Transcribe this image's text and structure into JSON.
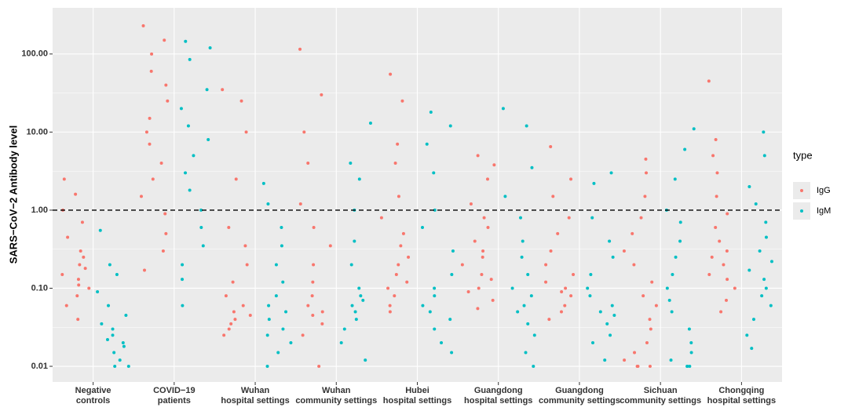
{
  "chart_data": {
    "type": "strip",
    "y_label": "SARS−CoV−2 Antibody level",
    "log_y": true,
    "grid": true,
    "hline": 1,
    "legend_title": "type",
    "legend_position": "right",
    "ylim": [
      0.0063,
      390
    ],
    "yticks": [
      {
        "value": 0.01,
        "label": "0.01"
      },
      {
        "value": 0.1,
        "label": "0.10"
      },
      {
        "value": 1,
        "label": "1.00"
      },
      {
        "value": 10,
        "label": "10.00"
      },
      {
        "value": 100,
        "label": "100.00"
      }
    ],
    "categories": [
      "Negative\ncontrols",
      "COVID−19\npatients",
      "Wuhan\nhospital settings",
      "Wuhan\ncommunity settings",
      "Hubei\nhospital settings",
      "Guangdong\nhospital settings",
      "Guangdong\ncommunity settings",
      "Sichuan\ncommunity settings",
      "Chongqing\nhospital settings"
    ],
    "series": [
      {
        "name": "IgG",
        "color": "#F8766D",
        "values": [
          [
            0.04,
            0.06,
            0.08,
            0.1,
            0.11,
            0.13,
            0.15,
            0.18,
            0.2,
            0.25,
            0.3,
            0.45,
            0.7,
            1.0,
            1.6,
            2.5
          ],
          [
            0.17,
            0.3,
            0.5,
            0.9,
            1.5,
            2.5,
            4,
            7,
            10,
            15,
            25,
            40,
            60,
            100,
            150,
            230
          ],
          [
            0.025,
            0.03,
            0.035,
            0.04,
            0.045,
            0.05,
            0.06,
            0.08,
            0.12,
            0.2,
            0.35,
            0.6,
            2.5,
            10,
            25,
            35
          ],
          [
            0.01,
            0.025,
            0.035,
            0.045,
            0.05,
            0.06,
            0.08,
            0.12,
            0.2,
            0.35,
            0.6,
            1.2,
            4,
            10,
            30,
            115
          ],
          [
            0.05,
            0.06,
            0.08,
            0.1,
            0.12,
            0.15,
            0.2,
            0.25,
            0.35,
            0.5,
            0.8,
            1.5,
            4,
            7,
            25,
            55
          ],
          [
            0.055,
            0.07,
            0.09,
            0.1,
            0.13,
            0.15,
            0.2,
            0.25,
            0.3,
            0.4,
            0.6,
            0.8,
            1.2,
            2.5,
            3.8,
            5
          ],
          [
            0.04,
            0.05,
            0.06,
            0.08,
            0.09,
            0.1,
            0.12,
            0.15,
            0.2,
            0.3,
            0.5,
            0.8,
            1.5,
            2.5,
            6.5
          ],
          [
            0.01,
            0.01,
            0.01,
            0.012,
            0.015,
            0.02,
            0.03,
            0.04,
            0.06,
            0.08,
            0.12,
            0.2,
            0.3,
            0.5,
            0.8,
            1.5,
            3,
            4.5
          ],
          [
            0.05,
            0.07,
            0.1,
            0.13,
            0.15,
            0.2,
            0.25,
            0.3,
            0.4,
            0.6,
            0.9,
            1.5,
            3,
            5,
            8,
            45
          ]
        ]
      },
      {
        "name": "IgM",
        "color": "#00BFC4",
        "values": [
          [
            0.01,
            0.01,
            0.012,
            0.015,
            0.018,
            0.02,
            0.022,
            0.025,
            0.03,
            0.035,
            0.045,
            0.06,
            0.09,
            0.15,
            0.2,
            0.55
          ],
          [
            0.06,
            0.13,
            0.2,
            0.35,
            0.6,
            1,
            1.8,
            3,
            5,
            8,
            12,
            20,
            35,
            85,
            120,
            145
          ],
          [
            0.01,
            0.015,
            0.02,
            0.025,
            0.03,
            0.04,
            0.05,
            0.06,
            0.08,
            0.12,
            0.2,
            0.35,
            0.6,
            1.2,
            2.2
          ],
          [
            0.012,
            0.02,
            0.03,
            0.04,
            0.05,
            0.06,
            0.07,
            0.08,
            0.1,
            0.2,
            0.4,
            1,
            2.5,
            4,
            13
          ],
          [
            0.015,
            0.02,
            0.03,
            0.04,
            0.05,
            0.06,
            0.08,
            0.1,
            0.15,
            0.3,
            0.6,
            1,
            3,
            7,
            12,
            18
          ],
          [
            0.01,
            0.015,
            0.025,
            0.035,
            0.05,
            0.06,
            0.08,
            0.1,
            0.15,
            0.25,
            0.4,
            0.8,
            1.5,
            3.5,
            12,
            20
          ],
          [
            0.012,
            0.02,
            0.025,
            0.035,
            0.045,
            0.05,
            0.06,
            0.08,
            0.1,
            0.15,
            0.25,
            0.4,
            0.8,
            2.2,
            3
          ],
          [
            0.01,
            0.01,
            0.01,
            0.012,
            0.015,
            0.02,
            0.03,
            0.05,
            0.07,
            0.1,
            0.15,
            0.25,
            0.4,
            0.7,
            1,
            2.5,
            6,
            11
          ],
          [
            0.017,
            0.025,
            0.04,
            0.06,
            0.08,
            0.1,
            0.13,
            0.17,
            0.22,
            0.3,
            0.45,
            0.7,
            1.2,
            2,
            5,
            10
          ]
        ]
      }
    ]
  }
}
